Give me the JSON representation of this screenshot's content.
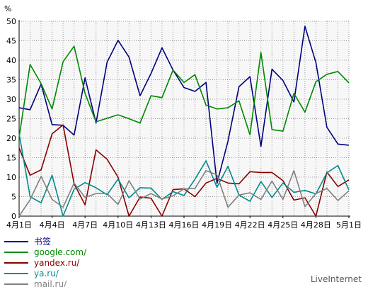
{
  "chart_data": {
    "type": "line",
    "ylabel": "%",
    "ylim": [
      0,
      50
    ],
    "yticks": [
      0,
      5,
      10,
      15,
      20,
      25,
      30,
      35,
      40,
      45,
      50
    ],
    "grid": true,
    "x": [
      "4月1日",
      "4月2日",
      "4月3日",
      "4月4日",
      "4月5日",
      "4月6日",
      "4月7日",
      "4月8日",
      "4月9日",
      "4月10日",
      "4月11日",
      "4月12日",
      "4月13日",
      "4月14日",
      "4月15日",
      "4月16日",
      "4月17日",
      "4月18日",
      "4月19日",
      "4月20日",
      "4月21日",
      "4月22日",
      "4月23日",
      "4月24日",
      "4月25日",
      "4月26日",
      "4月27日",
      "4月28日",
      "4月29日",
      "4月30日",
      "5月1日"
    ],
    "xtick_labels": [
      "4月1日",
      "4月4日",
      "4月7日",
      "4月10日",
      "4月13日",
      "4月16日",
      "4月19日",
      "4月22日",
      "4月25日",
      "4月28日",
      "5月1日"
    ],
    "xtick_indices": [
      0,
      3,
      6,
      9,
      12,
      15,
      18,
      21,
      24,
      27,
      30
    ],
    "legend_position": "bottom-left",
    "series": [
      {
        "name": "书签",
        "color": "#00007f",
        "values": [
          27.8,
          27.3,
          33.9,
          23.5,
          23.3,
          20.8,
          35.5,
          23.9,
          39.5,
          45.1,
          40.8,
          30.9,
          36.6,
          43.2,
          37.5,
          33.0,
          32.0,
          34.3,
          8.4,
          19.2,
          33.2,
          35.8,
          17.9,
          37.7,
          34.8,
          29.3,
          48.7,
          39.4,
          22.8,
          18.5,
          18.2
        ]
      },
      {
        "name": "google.com/",
        "color": "#008800",
        "values": [
          20.2,
          38.9,
          34.0,
          27.5,
          39.6,
          43.6,
          31.5,
          24.2,
          25.1,
          26.0,
          25.0,
          23.9,
          30.9,
          30.4,
          37.5,
          34.3,
          36.3,
          28.5,
          27.5,
          27.8,
          29.6,
          20.9,
          42.0,
          22.2,
          21.8,
          31.5,
          26.7,
          34.5,
          36.4,
          37.1,
          34.2
        ]
      },
      {
        "name": "yandex.ru/",
        "color": "#880000",
        "values": [
          17.5,
          10.5,
          11.9,
          21.1,
          23.4,
          8.3,
          2.9,
          17.0,
          14.6,
          10.0,
          0.0,
          4.9,
          4.6,
          0.0,
          6.8,
          7.0,
          5.0,
          8.5,
          9.7,
          8.5,
          8.3,
          11.4,
          11.2,
          11.2,
          9.1,
          4.1,
          4.7,
          0.0,
          11.3,
          7.6,
          9.3
        ]
      },
      {
        "name": "ya.ru/",
        "color": "#008b8b",
        "values": [
          21.2,
          5.0,
          3.4,
          10.5,
          0.0,
          6.9,
          8.6,
          7.3,
          5.5,
          9.5,
          4.7,
          7.3,
          7.2,
          4.3,
          6.3,
          5.3,
          9.5,
          14.2,
          7.4,
          12.8,
          5.4,
          3.8,
          8.9,
          4.8,
          8.5,
          6.1,
          6.6,
          5.7,
          11.1,
          13.0,
          6.7
        ]
      },
      {
        "name": "mail.ru/",
        "color": "#808080",
        "values": [
          0.0,
          4.2,
          10.2,
          4.3,
          2.3,
          8.5,
          4.8,
          5.8,
          5.8,
          3.0,
          9.1,
          4.4,
          5.8,
          4.4,
          5.2,
          7.0,
          7.1,
          11.7,
          10.6,
          2.3,
          5.4,
          6.0,
          4.3,
          9.0,
          4.3,
          11.7,
          2.4,
          5.8,
          7.1,
          4.0,
          6.5
        ]
      }
    ]
  },
  "legend": {
    "items": [
      {
        "label": "书签",
        "color": "#00007f"
      },
      {
        "label": "google.com/",
        "color": "#008800"
      },
      {
        "label": "yandex.ru/",
        "color": "#880000"
      },
      {
        "label": "ya.ru/",
        "color": "#008b8b"
      },
      {
        "label": "mail.ru/",
        "color": "#808080"
      }
    ]
  },
  "branding": {
    "text": "LiveInternet"
  }
}
